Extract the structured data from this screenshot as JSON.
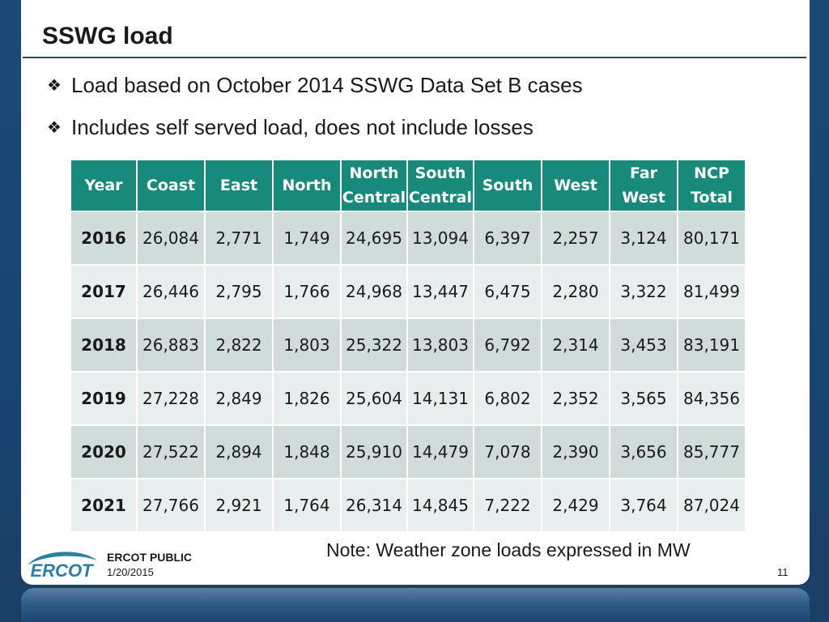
{
  "slide": {
    "title": "SSWG load",
    "bullets": [
      "Load based on October 2014 SSWG Data Set B cases",
      "Includes self served load, does not include losses"
    ],
    "bullet_icon": "diamond-bullet-icon"
  },
  "table": {
    "headers": [
      [
        "Year"
      ],
      [
        "Coast"
      ],
      [
        "East"
      ],
      [
        "North"
      ],
      [
        "North",
        "Central"
      ],
      [
        "South",
        "Central"
      ],
      [
        "South"
      ],
      [
        "West"
      ],
      [
        "Far",
        "West"
      ],
      [
        "NCP",
        "Total"
      ]
    ],
    "rows": [
      [
        "2016",
        "26,084",
        "2,771",
        "1,749",
        "24,695",
        "13,094",
        "6,397",
        "2,257",
        "3,124",
        "80,171"
      ],
      [
        "2017",
        "26,446",
        "2,795",
        "1,766",
        "24,968",
        "13,447",
        "6,475",
        "2,280",
        "3,322",
        "81,499"
      ],
      [
        "2018",
        "26,883",
        "2,822",
        "1,803",
        "25,322",
        "13,803",
        "6,792",
        "2,314",
        "3,453",
        "83,191"
      ],
      [
        "2019",
        "27,228",
        "2,849",
        "1,826",
        "25,604",
        "14,131",
        "6,802",
        "2,352",
        "3,565",
        "84,356"
      ],
      [
        "2020",
        "27,522",
        "2,894",
        "1,848",
        "25,910",
        "14,479",
        "7,078",
        "2,390",
        "3,656",
        "85,777"
      ],
      [
        "2021",
        "27,766",
        "2,921",
        "1,764",
        "26,314",
        "14,845",
        "7,222",
        "2,429",
        "3,764",
        "87,024"
      ]
    ],
    "header_color": "#178a7c",
    "row_colors": [
      "#cfdcd9",
      "#e8eeed"
    ]
  },
  "note": "Note: Weather zone loads expressed in MW",
  "footer": {
    "logo_text": "ERCOT",
    "label": "ERCOT PUBLIC",
    "date": "1/20/2015",
    "page_number": "11"
  },
  "colors": {
    "frame": "#1f4e79",
    "title_rule": "#1f4e6b"
  }
}
